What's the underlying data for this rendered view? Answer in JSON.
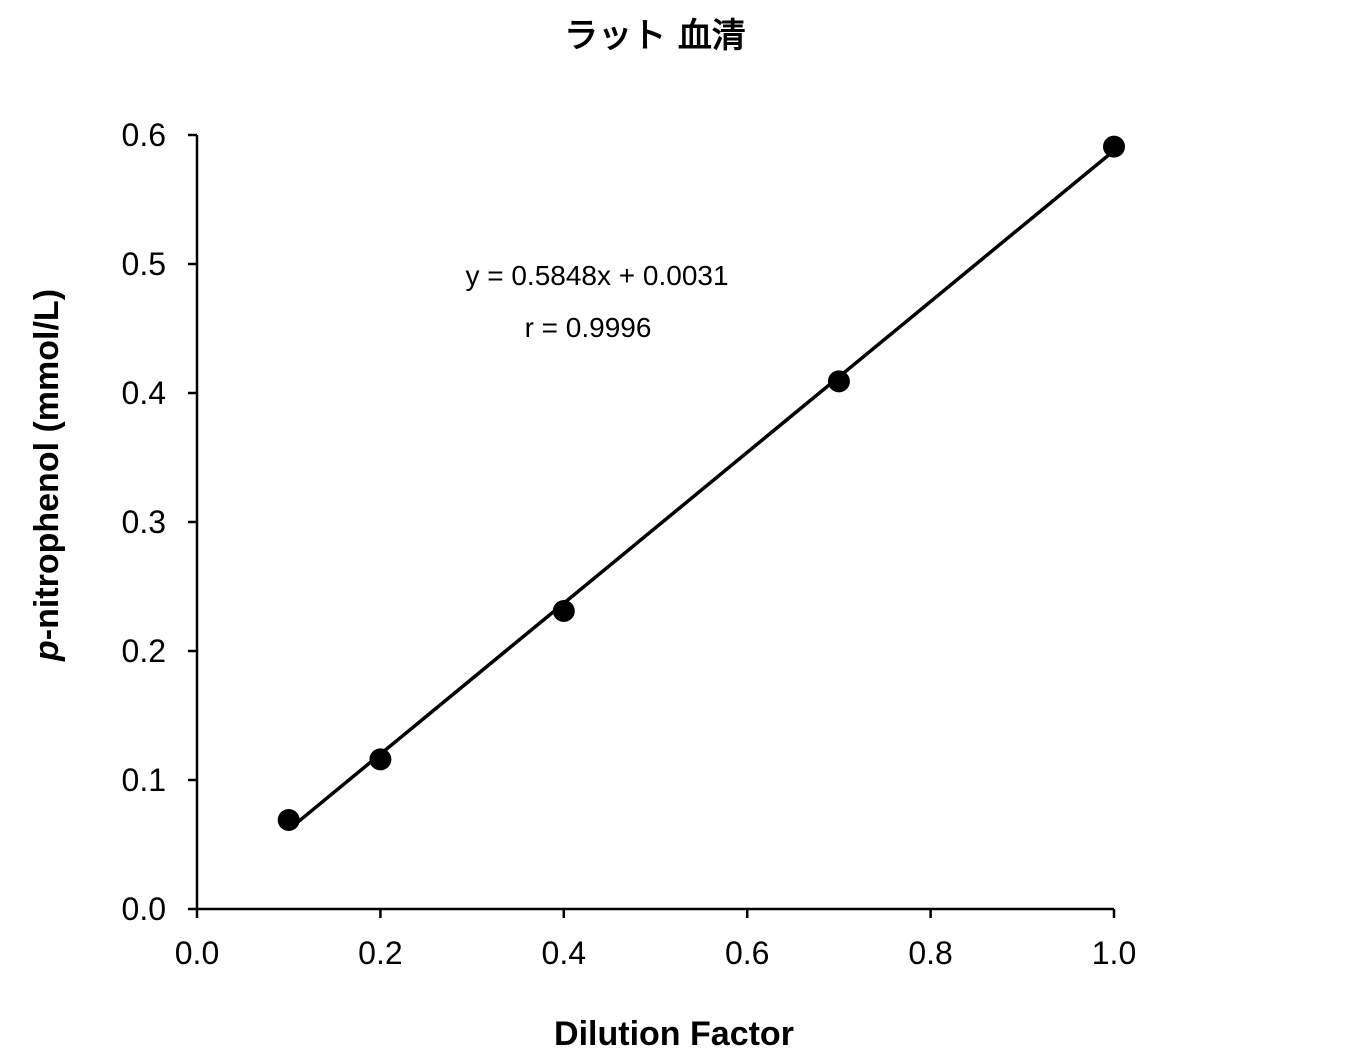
{
  "chart_data": {
    "type": "scatter",
    "title": "ラット 血清",
    "xlabel": "Dilution Factor",
    "ylabel_italic_prefix": "p",
    "ylabel_rest": "-nitrophenol (mmol/L)",
    "xlim": [
      0.0,
      1.0
    ],
    "ylim": [
      0.0,
      0.6
    ],
    "x_ticks": [
      "0.0",
      "0.2",
      "0.4",
      "0.6",
      "0.8",
      "1.0"
    ],
    "y_ticks": [
      "0.0",
      "0.1",
      "0.2",
      "0.3",
      "0.4",
      "0.5",
      "0.6"
    ],
    "grid": false,
    "series": [
      {
        "x": [
          0.1,
          0.2,
          0.4,
          0.7,
          1.0
        ],
        "y": [
          0.069,
          0.116,
          0.231,
          0.409,
          0.591
        ]
      }
    ],
    "trendline": {
      "slope": 0.5848,
      "intercept": 0.0031,
      "x_range": [
        0.1,
        1.0
      ]
    },
    "annotations": {
      "equation": "y = 0.5848x + 0.0031",
      "r": "r = 0.9996"
    },
    "colors": {
      "points": "#000000",
      "line": "#000000"
    }
  }
}
